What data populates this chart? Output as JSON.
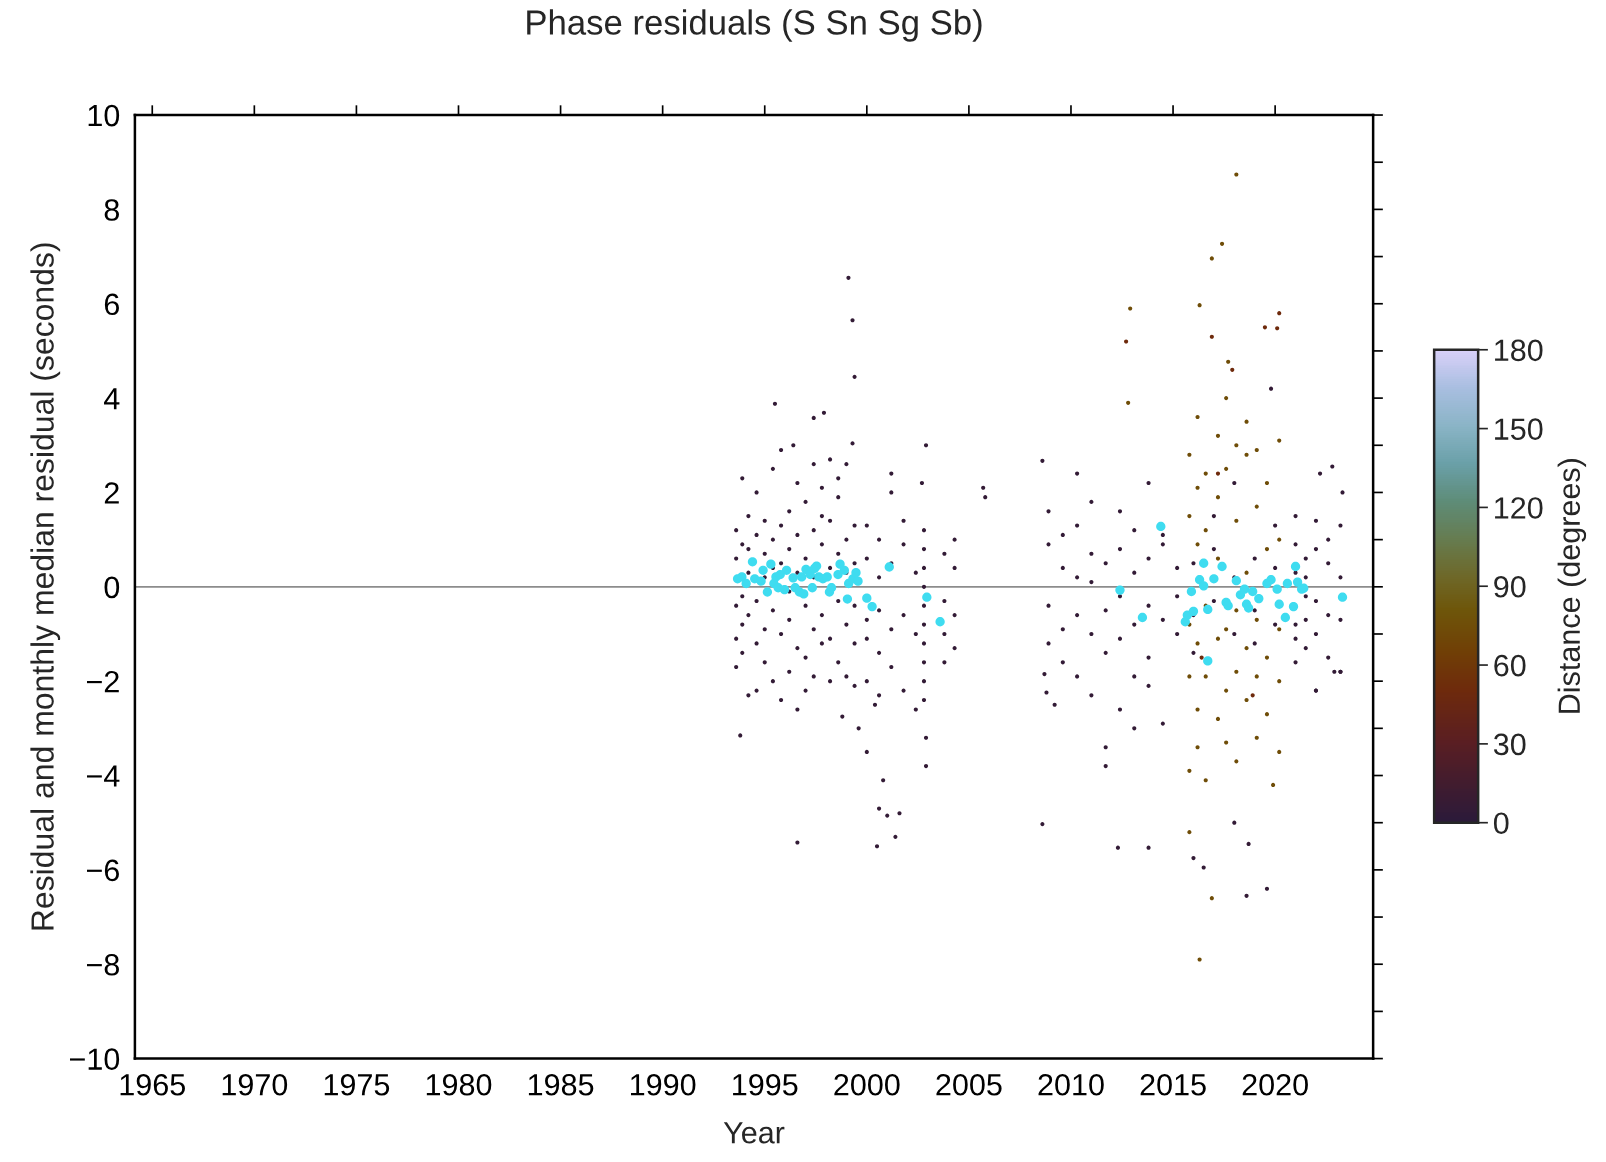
{
  "chart_data": {
    "type": "scatter",
    "title": "Phase residuals (S Sn Sg Sb)",
    "xlabel": "Year",
    "ylabel": "Residual and monthly median residual (seconds)",
    "clabel": "Distance (degrees)",
    "xlim": [
      1964.15,
      2024.8
    ],
    "xticks": [
      1965,
      1970,
      1975,
      1980,
      1985,
      1990,
      1995,
      2000,
      2005,
      2010,
      2015,
      2020
    ],
    "ylim": [
      -10,
      10
    ],
    "yticks": [
      {
        "value": -10,
        "label": "−10"
      },
      {
        "value": -9,
        "label": null
      },
      {
        "value": -8,
        "label": "−8"
      },
      {
        "value": -7,
        "label": null
      },
      {
        "value": -6,
        "label": "−6"
      },
      {
        "value": -5,
        "label": null
      },
      {
        "value": -4,
        "label": "−4"
      },
      {
        "value": -3,
        "label": null
      },
      {
        "value": -2,
        "label": "−2"
      },
      {
        "value": -1,
        "label": null
      },
      0,
      {
        "value": 1,
        "label": null
      },
      2,
      {
        "value": 3,
        "label": null
      },
      4,
      {
        "value": 5,
        "label": null
      },
      6,
      {
        "value": 7,
        "label": null
      },
      8,
      {
        "value": 9,
        "label": null
      },
      10
    ],
    "clim": [
      0,
      180
    ],
    "cticks": [
      0,
      30,
      60,
      90,
      120,
      150,
      180
    ],
    "grid": false,
    "legend": false,
    "marker": "circle",
    "ref_lines": [
      {
        "axis": "y",
        "value": 0,
        "color": "#8c8c8c"
      }
    ],
    "series": [
      {
        "type": "scatter",
        "x": [
          1993.6,
          1993.6,
          1993.6,
          1993.6,
          1993.6,
          1993.9,
          1993.9,
          1993.9,
          1993.9,
          1993.9,
          1994.2,
          1994.2,
          1994.2,
          1994.2,
          1994.2,
          1994.6,
          1994.6,
          1994.6,
          1994.6,
          1994.6,
          1995.0,
          1995.0,
          1995.0,
          1995.0,
          1995.0,
          1995.4,
          1995.4,
          1995.4,
          1995.4,
          1995.4,
          1995.8,
          1995.8,
          1995.8,
          1995.8,
          1995.8,
          1996.2,
          1996.2,
          1996.2,
          1996.2,
          1996.2,
          1996.6,
          1996.6,
          1996.6,
          1996.6,
          1996.6,
          1997.0,
          1997.0,
          1997.0,
          1997.0,
          1997.0,
          1997.4,
          1997.4,
          1997.4,
          1997.4,
          1997.4,
          1997.8,
          1997.8,
          1997.8,
          1997.8,
          1997.8,
          1998.2,
          1998.2,
          1998.2,
          1998.2,
          1998.2,
          1998.6,
          1998.6,
          1998.6,
          1998.6,
          1998.6,
          1999.0,
          1999.0,
          1999.0,
          1999.0,
          1999.0,
          1999.4,
          1999.4,
          1999.4,
          1999.4,
          1999.4,
          2000.0,
          2000.0,
          2000.0,
          2000.0,
          2000.0,
          2000.6,
          2000.6,
          2000.6,
          2000.6,
          2000.6,
          2001.2,
          2001.2,
          2001.2,
          2001.2,
          2001.8,
          2001.8,
          2001.8,
          2001.8,
          2002.4,
          2002.4,
          2002.4,
          2002.8,
          2002.8,
          2002.8,
          2002.8,
          2002.8,
          2002.8,
          2002.8,
          2002.8,
          2002.8,
          2002.8,
          2003.8,
          2003.8,
          2003.8,
          2003.8,
          2004.3,
          2004.3,
          2004.3,
          2004.3,
          1999.1,
          1999.3,
          1999.4,
          1995.5,
          1997.4,
          1997.9,
          1996.4,
          1999.3,
          2001.2,
          2002.7,
          2002.9,
          2005.7,
          2005.8,
          1993.8,
          1996.6,
          2000.5,
          2000.8,
          2000.6,
          2001.0,
          2001.6,
          2001.4,
          2002.9,
          2002.9,
          1999.6,
          2000.0,
          2000.4,
          1998.8
        ],
        "values": [
          1.2,
          0.6,
          -0.4,
          -1.1,
          -1.7,
          0.9,
          -0.2,
          -0.8,
          2.3,
          -1.4,
          1.5,
          0.3,
          -0.6,
          -2.3,
          0.8,
          1.1,
          -0.3,
          -1.2,
          2.0,
          -2.2,
          0.7,
          -0.9,
          1.4,
          -1.6,
          0.2,
          1.0,
          -0.5,
          2.5,
          -2.0,
          0.4,
          1.3,
          -1.0,
          0.5,
          -2.4,
          2.9,
          0.8,
          -0.7,
          1.6,
          -1.8,
          -0.1,
          1.1,
          -1.3,
          0.3,
          2.2,
          -2.6,
          0.6,
          -0.4,
          1.8,
          -1.5,
          -2.2,
          1.2,
          -0.9,
          0.2,
          2.6,
          -1.9,
          0.9,
          -0.6,
          1.5,
          -1.2,
          2.1,
          1.4,
          -1.1,
          0.4,
          -2.0,
          2.7,
          0.7,
          -0.3,
          1.9,
          -1.6,
          2.3,
          1.0,
          -0.8,
          0.3,
          -1.9,
          2.6,
          0.5,
          -1.2,
          1.3,
          -0.4,
          -2.1,
          0.6,
          -0.7,
          1.3,
          -2.0,
          -1.1,
          0.2,
          -0.5,
          1.0,
          -1.4,
          -2.3,
          0.5,
          -0.9,
          2.0,
          -1.7,
          0.9,
          -0.6,
          1.4,
          -2.2,
          0.3,
          -1.0,
          -2.6,
          1.2,
          0.8,
          0.4,
          0.0,
          -0.4,
          -0.8,
          -1.2,
          -1.6,
          -2.0,
          -2.4,
          0.7,
          -0.3,
          -1.0,
          -1.6,
          1.0,
          0.4,
          -0.6,
          -1.3,
          6.55,
          5.65,
          4.45,
          3.88,
          3.58,
          3.69,
          3.0,
          3.04,
          2.4,
          2.2,
          3.0,
          2.1,
          1.9,
          -3.15,
          -5.42,
          -5.5,
          -4.1,
          -4.7,
          -4.85,
          -4.8,
          -5.3,
          -3.8,
          -3.2,
          -3.0,
          -3.5,
          -2.5,
          -2.75
        ],
        "cvalues": [
          5,
          5,
          5,
          5,
          5,
          5,
          5,
          5,
          5,
          5,
          5,
          5,
          5,
          5,
          5,
          5,
          5,
          5,
          5,
          5,
          5,
          5,
          5,
          5,
          5,
          5,
          5,
          5,
          5,
          5,
          5,
          5,
          5,
          5,
          5,
          5,
          5,
          5,
          5,
          5,
          5,
          5,
          5,
          5,
          5,
          5,
          5,
          5,
          5,
          5,
          5,
          5,
          5,
          5,
          5,
          5,
          5,
          5,
          5,
          5,
          5,
          5,
          5,
          5,
          5,
          5,
          5,
          5,
          5,
          5,
          5,
          5,
          5,
          5,
          5,
          5,
          5,
          5,
          5,
          5,
          5,
          5,
          5,
          5,
          5,
          5,
          5,
          5,
          5,
          5,
          5,
          5,
          5,
          5,
          5,
          5,
          5,
          5,
          5,
          5,
          5,
          5,
          5,
          5,
          5,
          5,
          5,
          5,
          5,
          5,
          5,
          5,
          5,
          5,
          5,
          5,
          5,
          5,
          5,
          5,
          5,
          5,
          5,
          5,
          5,
          5,
          5,
          5,
          5,
          5,
          5,
          5,
          5,
          5,
          5,
          5,
          5,
          5,
          5,
          5,
          5,
          5,
          5,
          5,
          5,
          5
        ]
      },
      {
        "type": "scatter",
        "x": [
          2008.9,
          2008.9,
          2008.9,
          2008.9,
          2009.6,
          2009.6,
          2009.6,
          2009.6,
          2010.3,
          2010.3,
          2010.3,
          2010.3,
          2010.3,
          2011.0,
          2011.0,
          2011.0,
          2011.0,
          2011.0,
          2011.7,
          2011.7,
          2011.7,
          2011.7,
          2011.7,
          2012.4,
          2012.4,
          2012.4,
          2012.4,
          2012.4,
          2013.1,
          2013.1,
          2013.1,
          2013.1,
          2013.1,
          2013.8,
          2013.8,
          2013.8,
          2013.8,
          2013.8,
          2014.5,
          2014.5,
          2014.5,
          2014.5,
          2015.2,
          2015.2,
          2015.2,
          2016.0,
          2016.0,
          2016.0,
          2017.0,
          2017.0,
          2017.0,
          2018.0,
          2018.0,
          2018.0,
          2019.0,
          2019.0,
          2019.0,
          2020.0,
          2020.0,
          2020.0,
          2021.0,
          2021.0,
          2021.0,
          2021.0,
          2021.0,
          2021.0,
          2021.5,
          2021.5,
          2021.5,
          2021.5,
          2021.5,
          2022.0,
          2022.0,
          2022.0,
          2022.0,
          2022.0,
          2022.6,
          2022.6,
          2022.6,
          2022.6,
          2023.2,
          2023.2,
          2023.2,
          2023.2,
          2008.6,
          2008.6,
          2008.7,
          2008.8,
          2009.2,
          2012.3,
          2013.8,
          2016.0,
          2016.5,
          2018.6,
          2019.6,
          2018.7,
          2018.0,
          2022.2,
          2022.8,
          2023.3,
          2022.9,
          2023.2,
          2022.0,
          2019.8
        ],
        "values": [
          0.9,
          -0.4,
          -1.2,
          1.6,
          0.4,
          -0.9,
          1.1,
          -1.6,
          0.2,
          -0.6,
          1.3,
          -1.9,
          2.4,
          0.7,
          -1.0,
          0.1,
          -2.3,
          1.8,
          0.5,
          -0.5,
          -1.4,
          -3.4,
          -3.8,
          0.8,
          -0.2,
          -1.1,
          -2.6,
          1.6,
          0.3,
          -0.8,
          -1.9,
          -3.0,
          1.2,
          0.6,
          -0.4,
          -1.5,
          -2.1,
          2.2,
          0.9,
          -0.7,
          1.1,
          -2.9,
          0.4,
          -1.0,
          -0.2,
          0.5,
          -0.6,
          -1.4,
          0.8,
          -0.3,
          1.5,
          0.2,
          -1.0,
          2.2,
          0.6,
          -0.5,
          -1.2,
          0.4,
          -0.8,
          1.3,
          0.9,
          0.3,
          -0.8,
          -1.1,
          1.5,
          -1.6,
          0.6,
          -0.2,
          -0.7,
          0.2,
          -1.3,
          0.8,
          -0.3,
          -1.0,
          1.4,
          -2.2,
          0.5,
          -0.6,
          1.0,
          -1.5,
          0.2,
          -0.7,
          1.3,
          -1.8,
          2.67,
          -5.03,
          -1.85,
          -2.24,
          -2.5,
          -5.53,
          -5.53,
          -5.75,
          -5.95,
          -6.55,
          -6.4,
          -5.45,
          -5.0,
          2.4,
          2.55,
          2.0,
          -1.8,
          -1.8,
          -2.2,
          4.2
        ],
        "cvalues": [
          5,
          5,
          5,
          5,
          5,
          5,
          5,
          5,
          5,
          5,
          5,
          5,
          5,
          5,
          5,
          5,
          5,
          5,
          5,
          5,
          5,
          5,
          5,
          5,
          5,
          5,
          5,
          5,
          5,
          5,
          5,
          5,
          5,
          5,
          5,
          5,
          5,
          5,
          5,
          5,
          5,
          5,
          5,
          5,
          5,
          5,
          5,
          5,
          5,
          5,
          5,
          5,
          5,
          5,
          5,
          5,
          5,
          5,
          5,
          5,
          5,
          5,
          5,
          5,
          5,
          5,
          5,
          5,
          5,
          5,
          5,
          5,
          5,
          5,
          5,
          5,
          5,
          5,
          5,
          5,
          5,
          5,
          5,
          5,
          5,
          5,
          5,
          5,
          5,
          5,
          5,
          5,
          5,
          5,
          5,
          5,
          5,
          5,
          5,
          5,
          5,
          5,
          5,
          5
        ]
      },
      {
        "type": "scatter",
        "x": [
          2015.8,
          2015.8,
          2015.8,
          2015.8,
          2015.8,
          2016.2,
          2016.2,
          2016.2,
          2016.2,
          2016.2,
          2016.2,
          2016.6,
          2016.6,
          2016.6,
          2016.6,
          2016.6,
          2017.2,
          2017.2,
          2017.2,
          2017.2,
          2017.2,
          2017.6,
          2017.6,
          2017.6,
          2017.6,
          2017.6,
          2018.1,
          2018.1,
          2018.1,
          2018.1,
          2018.1,
          2018.6,
          2018.6,
          2018.6,
          2018.6,
          2018.6,
          2019.1,
          2019.1,
          2019.1,
          2019.1,
          2019.1,
          2019.6,
          2019.6,
          2019.6,
          2019.6,
          2020.2,
          2020.2,
          2020.2,
          2020.2,
          2020.2,
          2012.9,
          2012.8,
          2018.1,
          2017.4,
          2016.9,
          2016.3,
          2017.7,
          2016.9,
          2016.3,
          2015.8,
          2019.9
        ],
        "values": [
          1.5,
          -0.8,
          -1.9,
          2.8,
          -3.9,
          2.1,
          0.9,
          -1.2,
          -2.6,
          3.6,
          -3.4,
          1.2,
          -0.4,
          -1.9,
          2.4,
          -4.1,
          3.2,
          0.6,
          -1.1,
          -2.8,
          1.9,
          2.5,
          -0.9,
          -2.2,
          4.0,
          -3.3,
          1.4,
          -0.5,
          3.0,
          -1.8,
          -3.7,
          2.8,
          0.3,
          -1.3,
          -2.4,
          3.5,
          1.7,
          -0.7,
          -1.9,
          -3.2,
          2.9,
          2.2,
          0.8,
          -1.5,
          -2.7,
          1.0,
          -0.9,
          -2.0,
          3.1,
          -3.5,
          5.9,
          3.9,
          8.74,
          7.27,
          6.96,
          5.97,
          4.77,
          -6.6,
          -7.9,
          -5.2,
          -4.2
        ],
        "cvalues": [
          75,
          75,
          75,
          75,
          75,
          75,
          75,
          75,
          75,
          75,
          75,
          75,
          75,
          75,
          75,
          75,
          75,
          75,
          75,
          75,
          75,
          75,
          75,
          75,
          75,
          75,
          75,
          75,
          75,
          75,
          75,
          75,
          75,
          75,
          75,
          75,
          75,
          75,
          75,
          75,
          75,
          75,
          75,
          75,
          75,
          75,
          75,
          75,
          75,
          75,
          75,
          75,
          75,
          75,
          75,
          75,
          75,
          75,
          75,
          75,
          75
        ]
      },
      {
        "type": "scatter",
        "x": [
          2012.7,
          2016.9,
          2020.2,
          2020.1,
          2019.5,
          2017.9,
          2017.2,
          2018.9,
          2016.4
        ],
        "values": [
          5.2,
          5.3,
          5.8,
          5.48,
          5.5,
          4.6,
          2.4,
          -2.3,
          -1.5
        ],
        "cvalues": [
          50,
          50,
          50,
          50,
          50,
          50,
          50,
          50,
          50
        ]
      },
      {
        "type": "scatter",
        "color": "#3fdcf0",
        "x": [
          1993.67,
          1993.88,
          1994.09,
          1994.4,
          1994.51,
          1994.82,
          1994.92,
          1995.13,
          1995.3,
          1995.45,
          1995.55,
          1995.66,
          1995.76,
          1995.97,
          1996.07,
          1996.39,
          1996.49,
          1996.7,
          1996.81,
          1996.91,
          1997.02,
          1997.23,
          1997.33,
          1997.44,
          1997.54,
          1997.65,
          1997.85,
          1998.06,
          1998.17,
          1998.27,
          1998.59,
          1998.69,
          1998.9,
          1999.11,
          1999.32,
          1999.47,
          1999.57,
          1999.05,
          2000.0,
          2000.26,
          2001.1,
          2002.94,
          2003.59,
          2012.4,
          2013.5,
          2014.4,
          2015.6,
          2015.7,
          2016.0,
          2015.9,
          2016.3,
          2016.5,
          2016.5,
          2016.7,
          2016.7,
          2017.0,
          2017.4,
          2017.6,
          2017.7,
          2018.1,
          2018.3,
          2018.5,
          2018.6,
          2018.7,
          2018.9,
          2019.2,
          2019.6,
          2019.8,
          2020.1,
          2020.2,
          2020.5,
          2020.6,
          2020.9,
          2021.0,
          2021.1,
          2021.3,
          2021.4,
          2023.3
        ],
        "values": [
          0.17,
          0.21,
          0.07,
          0.53,
          0.17,
          0.12,
          0.35,
          -0.11,
          0.48,
          0.07,
          0.21,
          -0.02,
          0.26,
          -0.06,
          0.35,
          0.19,
          -0.02,
          -0.11,
          0.21,
          -0.15,
          0.37,
          0.26,
          -0.02,
          0.39,
          0.44,
          0.21,
          0.17,
          0.21,
          -0.11,
          -0.02,
          0.26,
          0.48,
          0.35,
          0.07,
          0.17,
          0.3,
          0.12,
          -0.26,
          -0.24,
          -0.42,
          0.42,
          -0.22,
          -0.74,
          -0.07,
          -0.65,
          1.28,
          -0.74,
          -0.6,
          -0.52,
          -0.1,
          0.15,
          0.5,
          0.02,
          -0.48,
          -1.57,
          0.17,
          0.43,
          -0.33,
          -0.4,
          0.13,
          -0.17,
          -0.05,
          -0.37,
          -0.45,
          -0.1,
          -0.25,
          0.07,
          0.15,
          -0.05,
          -0.37,
          -0.65,
          0.07,
          -0.42,
          0.43,
          0.1,
          -0.05,
          -0.03,
          -0.22
        ]
      }
    ]
  }
}
